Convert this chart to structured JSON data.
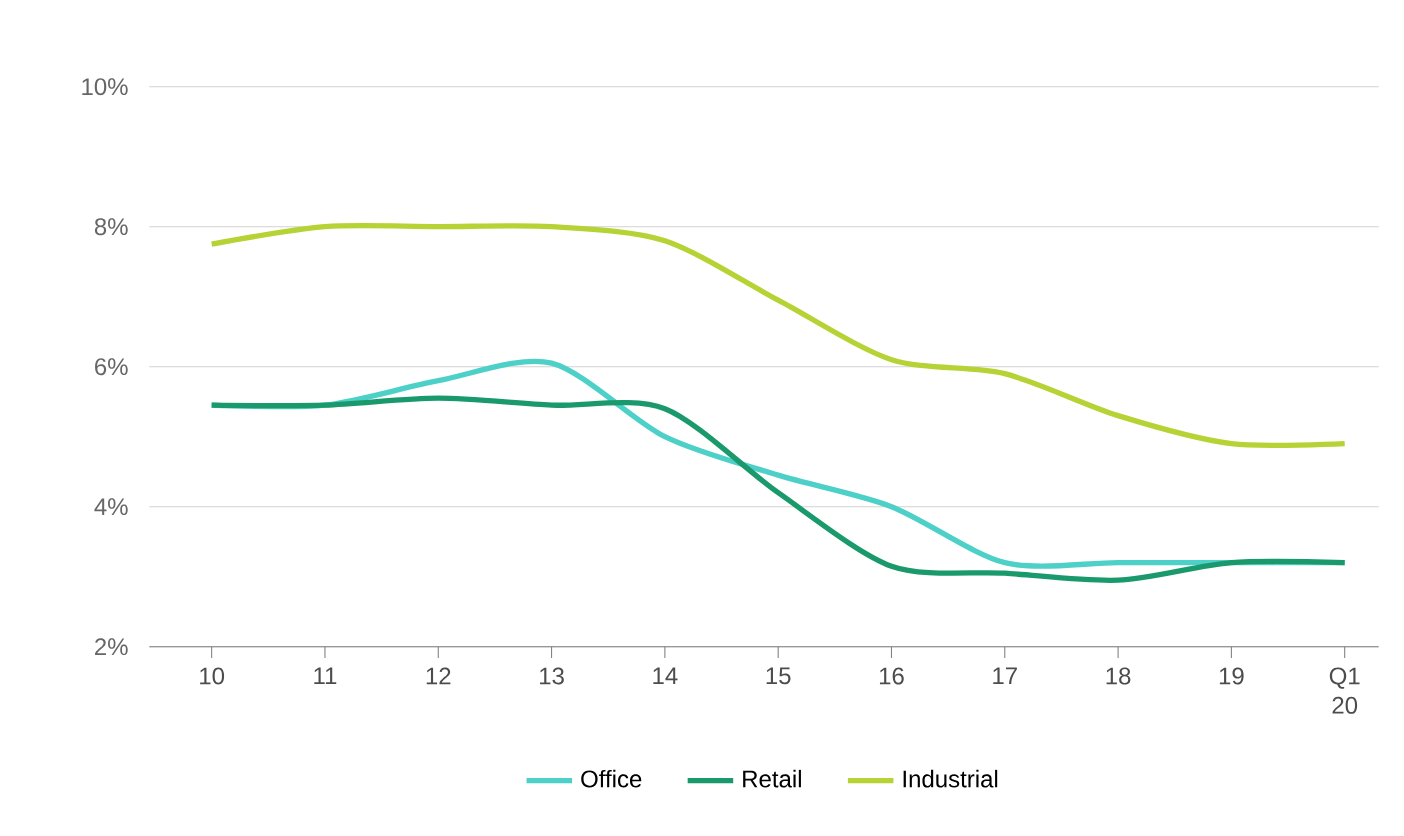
{
  "chart_data": {
    "type": "line",
    "categories": [
      "10",
      "11",
      "12",
      "13",
      "14",
      "15",
      "16",
      "17",
      "18",
      "19",
      "Q1 20"
    ],
    "series": [
      {
        "name": "Office",
        "color": "#4dd0c8",
        "values": [
          5.45,
          5.45,
          5.8,
          6.05,
          5.0,
          4.45,
          4.0,
          3.2,
          3.2,
          3.2,
          3.2
        ]
      },
      {
        "name": "Retail",
        "color": "#1a9a6c",
        "values": [
          5.45,
          5.45,
          5.55,
          5.45,
          5.4,
          4.2,
          3.15,
          3.05,
          2.95,
          3.2,
          3.2
        ]
      },
      {
        "name": "Industrial",
        "color": "#b5d334",
        "values": [
          7.75,
          8.0,
          8.0,
          8.0,
          7.8,
          6.95,
          6.1,
          5.9,
          5.3,
          4.9,
          4.9
        ]
      }
    ],
    "ylim": [
      2,
      10
    ],
    "yticks": [
      {
        "value": 2,
        "label": "2%"
      },
      {
        "value": 4,
        "label": "4%"
      },
      {
        "value": 6,
        "label": "6%"
      },
      {
        "value": 8,
        "label": "8%"
      },
      {
        "value": 10,
        "label": "10%"
      }
    ],
    "grid": "y",
    "legend": "bottom",
    "marker": "none",
    "line_style": "solid"
  }
}
